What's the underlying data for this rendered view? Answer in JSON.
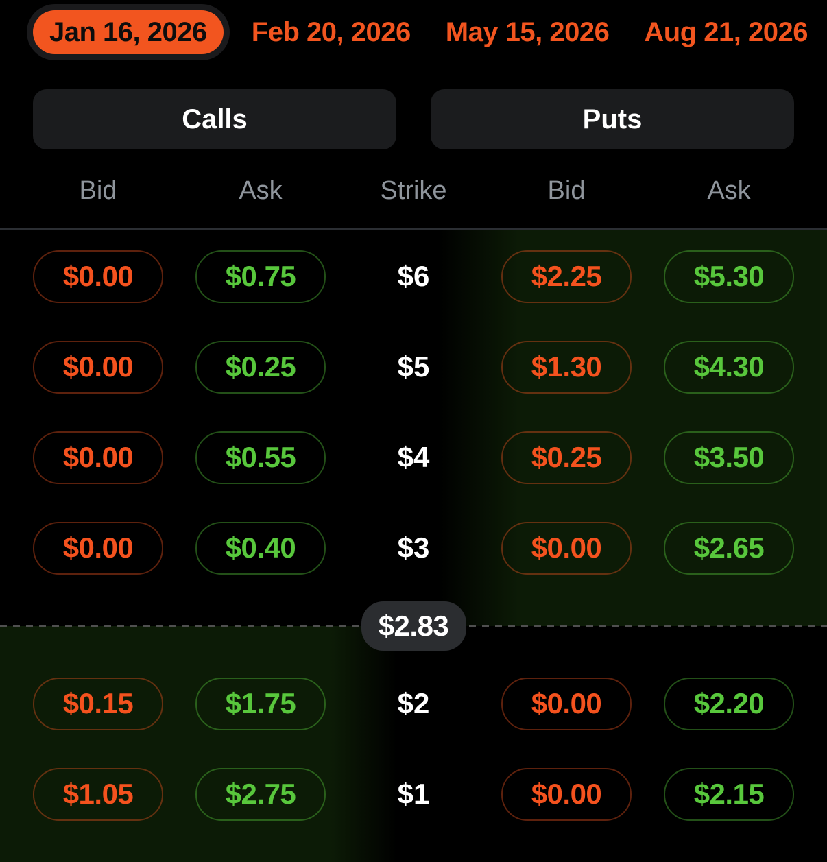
{
  "expiration_tabs": [
    {
      "label": "Jan 16, 2026",
      "selected": true
    },
    {
      "label": "Feb 20, 2026",
      "selected": false
    },
    {
      "label": "May 15, 2026",
      "selected": false
    },
    {
      "label": "Aug 21, 2026",
      "selected": false
    }
  ],
  "side_buttons": {
    "calls": "Calls",
    "puts": "Puts"
  },
  "columns": [
    "Bid",
    "Ask",
    "Strike",
    "Bid",
    "Ask"
  ],
  "current_price": "$2.83",
  "rows_above": [
    {
      "call_bid": "$0.00",
      "call_ask": "$0.75",
      "strike": "$6",
      "put_bid": "$2.25",
      "put_ask": "$5.30"
    },
    {
      "call_bid": "$0.00",
      "call_ask": "$0.25",
      "strike": "$5",
      "put_bid": "$1.30",
      "put_ask": "$4.30"
    },
    {
      "call_bid": "$0.00",
      "call_ask": "$0.55",
      "strike": "$4",
      "put_bid": "$0.25",
      "put_ask": "$3.50"
    },
    {
      "call_bid": "$0.00",
      "call_ask": "$0.40",
      "strike": "$3",
      "put_bid": "$0.00",
      "put_ask": "$2.65"
    }
  ],
  "rows_below": [
    {
      "call_bid": "$0.15",
      "call_ask": "$1.75",
      "strike": "$2",
      "put_bid": "$0.00",
      "put_ask": "$2.20"
    },
    {
      "call_bid": "$1.05",
      "call_ask": "$2.75",
      "strike": "$1",
      "put_bid": "$0.00",
      "put_ask": "$2.15"
    }
  ],
  "colors": {
    "accent_orange": "#f2551f",
    "selected_tab_text": "#0d0d0d",
    "bid_text": "#f4521e",
    "ask_text": "#58c73c",
    "bid_border": "rgba(244,88,34,0.38)",
    "ask_border": "rgba(88,199,60,0.40)",
    "header_text": "#8f959c",
    "strike_text": "#ffffff",
    "segment_bg": "#1b1c1e",
    "price_pill_bg": "#2b2d30",
    "itm_tint": "#0c1b06",
    "divider": "#2b2e33",
    "dotted_line": "#4f4f4f"
  }
}
